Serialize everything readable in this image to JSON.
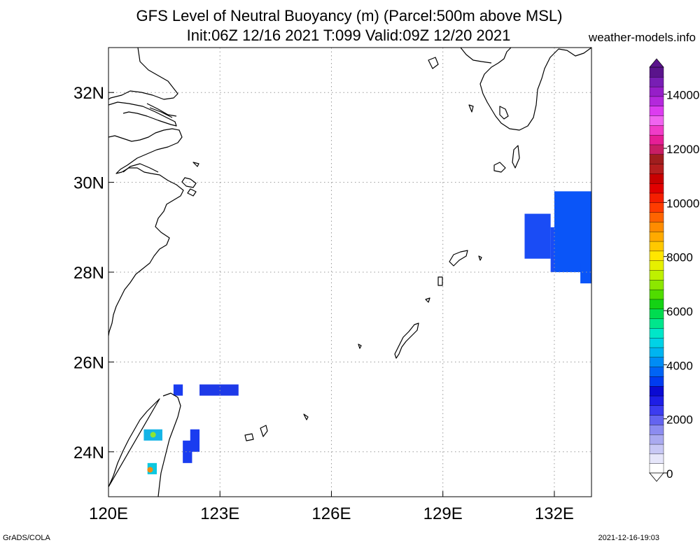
{
  "title_line1": "GFS Level of Neutral Buoyancy (m) (Parcel:500m above MSL)",
  "title_line2": "Init:06Z 12/16 2021 T:099 Valid:09Z 12/20 2021",
  "source": "weather-models.info",
  "footer_left": "GrADS/COLA",
  "footer_right": "2021-12-16-19:03",
  "map": {
    "lon_range": [
      120,
      133
    ],
    "lat_range": [
      23,
      33
    ],
    "lon_ticks": [
      {
        "value": 120,
        "label": "120E"
      },
      {
        "value": 123,
        "label": "123E"
      },
      {
        "value": 126,
        "label": "126E"
      },
      {
        "value": 129,
        "label": "129E"
      },
      {
        "value": 132,
        "label": "132E"
      }
    ],
    "lat_ticks": [
      {
        "value": 24,
        "label": "24N"
      },
      {
        "value": 26,
        "label": "26N"
      },
      {
        "value": 28,
        "label": "28N"
      },
      {
        "value": 30,
        "label": "30N"
      },
      {
        "value": 32,
        "label": "32N"
      }
    ],
    "gridlines": "dotted",
    "coastline_color": "#000000",
    "field_cells": [
      {
        "lon1": 131.2,
        "lon2": 131.9,
        "lat1": 28.3,
        "lat2": 29.3,
        "color": "#1a4cf5"
      },
      {
        "lon1": 131.9,
        "lon2": 132.3,
        "lat1": 28.0,
        "lat2": 29.0,
        "color": "#1a4cf5"
      },
      {
        "lon1": 132.0,
        "lon2": 133.0,
        "lat1": 28.0,
        "lat2": 29.8,
        "color": "#0a55f8"
      },
      {
        "lon1": 132.7,
        "lon2": 133.0,
        "lat1": 27.75,
        "lat2": 28.2,
        "color": "#0a55f8"
      },
      {
        "lon1": 121.75,
        "lon2": 122.0,
        "lat1": 25.25,
        "lat2": 25.5,
        "color": "#1a3cf0"
      },
      {
        "lon1": 122.45,
        "lon2": 123.5,
        "lat1": 25.25,
        "lat2": 25.5,
        "color": "#1e3ae8"
      },
      {
        "lon1": 122.0,
        "lon2": 122.25,
        "lat1": 23.75,
        "lat2": 24.25,
        "color": "#1a3cf0"
      },
      {
        "lon1": 122.2,
        "lon2": 122.45,
        "lat1": 24.0,
        "lat2": 24.5,
        "color": "#1a3cf0"
      },
      {
        "lon1": 120.95,
        "lon2": 121.45,
        "lat1": 24.25,
        "lat2": 24.5,
        "color": "#14b4e6"
      },
      {
        "lon1": 121.05,
        "lon2": 121.3,
        "lat1": 23.5,
        "lat2": 23.75,
        "color": "#0cc8e0"
      }
    ],
    "field_hotspots": [
      {
        "lon": 121.2,
        "lat": 24.38,
        "color": "#8ce632"
      },
      {
        "lon": 121.12,
        "lat": 23.6,
        "color": "#f08c14"
      }
    ]
  },
  "colorbar": {
    "min": 0,
    "max": 15000,
    "tick_labels": [
      {
        "value": 0,
        "label": "0"
      },
      {
        "value": 2000,
        "label": "2000"
      },
      {
        "value": 4000,
        "label": "4000"
      },
      {
        "value": 6000,
        "label": "6000"
      },
      {
        "value": 8000,
        "label": "8000"
      },
      {
        "value": 10000,
        "label": "10000"
      },
      {
        "value": 12000,
        "label": "12000"
      },
      {
        "value": 14000,
        "label": "14000"
      }
    ],
    "colors": [
      "#ffffff",
      "#e6e6fa",
      "#c8c8f5",
      "#aaaaf0",
      "#8c8cf0",
      "#6464f0",
      "#3c3cf0",
      "#1e1ee6",
      "#0a0ad2",
      "#003cf0",
      "#0064f5",
      "#008cf5",
      "#00b4f0",
      "#00d2e6",
      "#00e6c8",
      "#00e68c",
      "#00dc50",
      "#14d214",
      "#50dc00",
      "#8ce600",
      "#bef000",
      "#e6f000",
      "#ffe600",
      "#ffc800",
      "#ffaa00",
      "#ff8c00",
      "#ff6400",
      "#ff3c00",
      "#f51e00",
      "#e10000",
      "#c80000",
      "#b41e1e",
      "#a01e1e",
      "#c81e64",
      "#e61e96",
      "#f03cc8",
      "#f064f0",
      "#dc3cf0",
      "#b428dc",
      "#961ec8",
      "#781eb4",
      "#5a148c"
    ]
  }
}
